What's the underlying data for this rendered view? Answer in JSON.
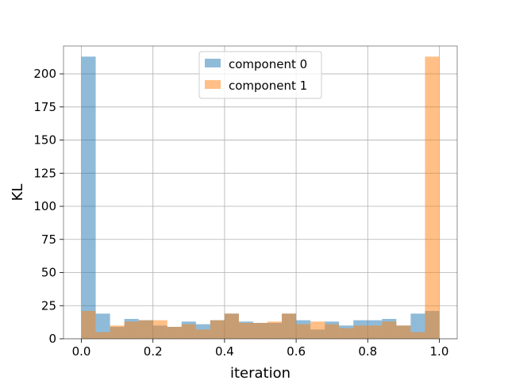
{
  "chart_data": {
    "type": "histogram",
    "title": "",
    "xlabel": "iteration",
    "ylabel": "KL",
    "xlim": [
      -0.05,
      1.05
    ],
    "ylim": [
      0,
      221
    ],
    "grid": true,
    "legend": {
      "placement": "top-center",
      "entries": [
        "component 0",
        "component 1"
      ]
    },
    "x_ticks": [
      0.0,
      0.2,
      0.4,
      0.6,
      0.8,
      1.0
    ],
    "x_tick_labels": [
      "0.0",
      "0.2",
      "0.4",
      "0.6",
      "0.8",
      "1.0"
    ],
    "y_ticks": [
      0,
      25,
      50,
      75,
      100,
      125,
      150,
      175,
      200
    ],
    "y_tick_labels": [
      "0",
      "25",
      "50",
      "75",
      "100",
      "125",
      "150",
      "175",
      "200"
    ],
    "bin_edges": [
      0.0,
      0.04,
      0.08,
      0.12,
      0.16,
      0.2,
      0.24,
      0.28,
      0.32,
      0.36,
      0.4,
      0.44,
      0.48,
      0.52,
      0.56,
      0.6,
      0.64,
      0.68,
      0.72,
      0.76,
      0.8,
      0.84,
      0.88,
      0.92,
      0.96,
      1.0
    ],
    "series": [
      {
        "name": "component 0",
        "color": "#1f77b4",
        "alpha": 0.5,
        "values": [
          213,
          19,
          9,
          15,
          14,
          10,
          9,
          13,
          11,
          14,
          19,
          13,
          12,
          12,
          19,
          14,
          7,
          13,
          10,
          14,
          14,
          15,
          10,
          19,
          21
        ]
      },
      {
        "name": "component 1",
        "color": "#ff7f0e",
        "alpha": 0.5,
        "values": [
          21,
          5,
          10,
          13,
          14,
          14,
          9,
          11,
          7,
          14,
          19,
          12,
          12,
          13,
          19,
          11,
          13,
          11,
          8,
          10,
          10,
          13,
          10,
          5,
          213
        ]
      }
    ]
  }
}
